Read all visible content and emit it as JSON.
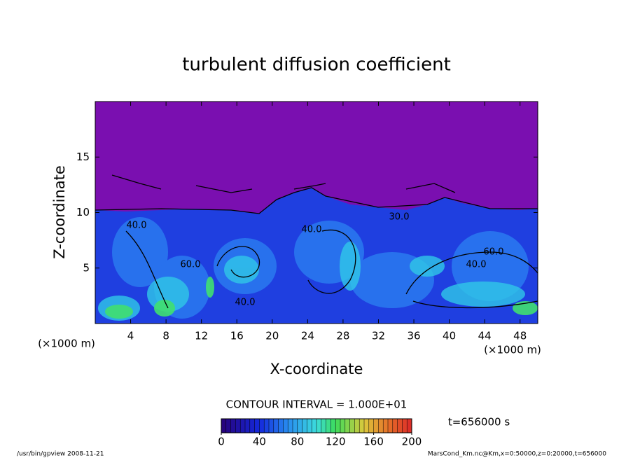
{
  "chart_data": {
    "type": "contour",
    "title": "turbulent diffusion coefficient",
    "x_label": "X-coordinate",
    "y_label": "Z-coordinate",
    "x_unit_label": "(×1000 m)",
    "xlim": [
      0,
      50
    ],
    "xticks": [
      4,
      8,
      12,
      16,
      20,
      24,
      28,
      32,
      36,
      40,
      44,
      48
    ],
    "ylim": [
      0,
      20
    ],
    "yticks": [
      5,
      10,
      15
    ],
    "contour_interval_label": "CONTOUR INTERVAL = 1.000E+01",
    "contour_labels": [
      "40.0",
      "40.0",
      "60.0",
      "30.0",
      "40.0",
      "60.0",
      "40.0"
    ],
    "colorbar": {
      "lim": [
        0,
        200
      ],
      "ticks": [
        0,
        40,
        80,
        120,
        160,
        200
      ]
    },
    "time_label": "t=656000 s",
    "footer_left": "/usr/bin/gpview   2008-11-21",
    "footer_right": "MarsCond_Km.nc@Km,x=0:50000,z=0:20000,t=656000"
  }
}
